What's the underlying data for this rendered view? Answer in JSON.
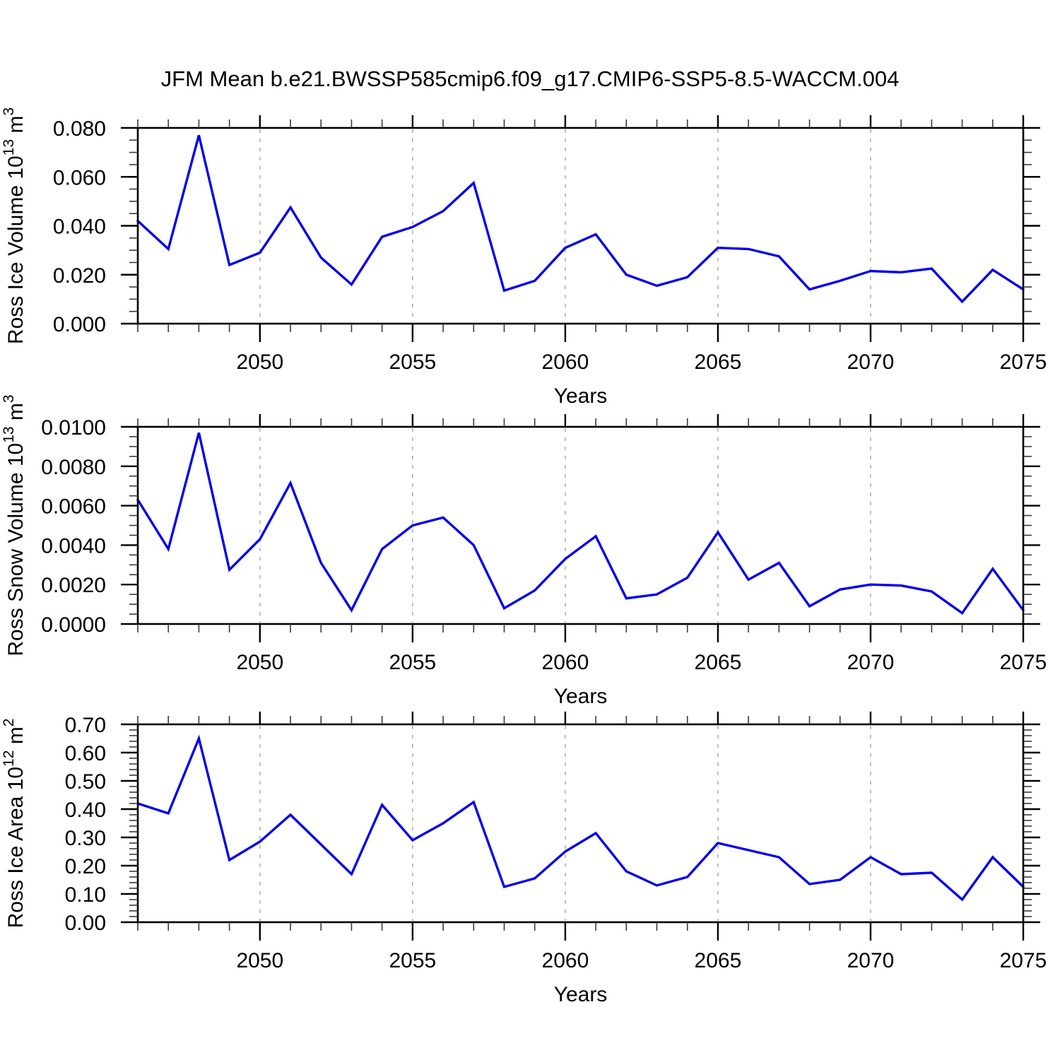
{
  "title": "JFM Mean b.e21.BWSSP585cmip6.f09_g17.CMIP6-SSP5-8.5-WACCM.004",
  "colors": {
    "line": "#0000ee",
    "grid": "#b0b0b0",
    "axis": "#000000",
    "background": "#ffffff"
  },
  "xlabel": "Years",
  "chart_data": [
    {
      "type": "line",
      "name": "ross-ice-volume",
      "title": "",
      "ylabel": "Ross Ice Volume 10^13 m^3",
      "ylabel_parts": [
        {
          "text": "Ross Ice Volume 10",
          "sup": false
        },
        {
          "text": "13",
          "sup": true
        },
        {
          "text": " m",
          "sup": false
        },
        {
          "text": "3",
          "sup": true
        }
      ],
      "xlabel": "Years",
      "xlim": [
        2046,
        2075
      ],
      "ylim": [
        0,
        0.08
      ],
      "xticks_major": [
        2050,
        2055,
        2060,
        2065,
        2070,
        2075
      ],
      "xtick_labels": [
        "2050",
        "2055",
        "2060",
        "2065",
        "2070",
        "2075"
      ],
      "x_minor_step": 1,
      "yticks_major": [
        0.0,
        0.02,
        0.04,
        0.06,
        0.08
      ],
      "ytick_labels": [
        "0.000",
        "0.020",
        "0.040",
        "0.060",
        "0.080"
      ],
      "y_minor_step": 0.005,
      "gridline_years": [
        2050,
        2055,
        2060,
        2065,
        2070
      ],
      "grid": "vertical-dashed",
      "legend": "none",
      "x": [
        2046,
        2047,
        2048,
        2049,
        2050,
        2051,
        2052,
        2053,
        2054,
        2055,
        2056,
        2057,
        2058,
        2059,
        2060,
        2061,
        2062,
        2063,
        2064,
        2065,
        2066,
        2067,
        2068,
        2069,
        2070,
        2071,
        2072,
        2073,
        2074,
        2075
      ],
      "values": [
        0.042,
        0.0305,
        0.077,
        0.024,
        0.029,
        0.0475,
        0.027,
        0.016,
        0.0355,
        0.0395,
        0.046,
        0.0575,
        0.0135,
        0.0175,
        0.031,
        0.0365,
        0.02,
        0.0155,
        0.019,
        0.031,
        0.0305,
        0.0275,
        0.014,
        0.0175,
        0.0215,
        0.021,
        0.0225,
        0.009,
        0.022,
        0.014
      ]
    },
    {
      "type": "line",
      "name": "ross-snow-volume",
      "title": "",
      "ylabel": "Ross Snow Volume 10^13 m^3",
      "ylabel_parts": [
        {
          "text": "Ross Snow Volume 10",
          "sup": false
        },
        {
          "text": "13",
          "sup": true
        },
        {
          "text": " m",
          "sup": false
        },
        {
          "text": "3",
          "sup": true
        }
      ],
      "xlabel": "Years",
      "xlim": [
        2046,
        2075
      ],
      "ylim": [
        0,
        0.01
      ],
      "xticks_major": [
        2050,
        2055,
        2060,
        2065,
        2070,
        2075
      ],
      "xtick_labels": [
        "2050",
        "2055",
        "2060",
        "2065",
        "2070",
        "2075"
      ],
      "x_minor_step": 1,
      "yticks_major": [
        0.0,
        0.002,
        0.004,
        0.006,
        0.008,
        0.01
      ],
      "ytick_labels": [
        "0.0000",
        "0.0020",
        "0.0040",
        "0.0060",
        "0.0080",
        "0.0100"
      ],
      "y_minor_step": 0.0005,
      "gridline_years": [
        2050,
        2055,
        2060,
        2065,
        2070
      ],
      "grid": "vertical-dashed",
      "legend": "none",
      "x": [
        2046,
        2047,
        2048,
        2049,
        2050,
        2051,
        2052,
        2053,
        2054,
        2055,
        2056,
        2057,
        2058,
        2059,
        2060,
        2061,
        2062,
        2063,
        2064,
        2065,
        2066,
        2067,
        2068,
        2069,
        2070,
        2071,
        2072,
        2073,
        2074,
        2075
      ],
      "values": [
        0.0063,
        0.0038,
        0.0097,
        0.00275,
        0.0043,
        0.00715,
        0.0031,
        0.0007,
        0.0038,
        0.005,
        0.0054,
        0.004,
        0.0008,
        0.0017,
        0.0033,
        0.00445,
        0.0013,
        0.0015,
        0.00235,
        0.00465,
        0.00225,
        0.0031,
        0.0009,
        0.00175,
        0.002,
        0.00195,
        0.00165,
        0.00055,
        0.0028,
        0.0007
      ]
    },
    {
      "type": "line",
      "name": "ross-ice-area",
      "title": "",
      "ylabel": "Ross Ice Area 10^12 m^2",
      "ylabel_parts": [
        {
          "text": "Ross Ice Area 10",
          "sup": false
        },
        {
          "text": "12",
          "sup": true
        },
        {
          "text": " m",
          "sup": false
        },
        {
          "text": "2",
          "sup": true
        }
      ],
      "xlabel": "Years",
      "xlim": [
        2046,
        2075
      ],
      "ylim": [
        0,
        0.7
      ],
      "xticks_major": [
        2050,
        2055,
        2060,
        2065,
        2070,
        2075
      ],
      "xtick_labels": [
        "2050",
        "2055",
        "2060",
        "2065",
        "2070",
        "2075"
      ],
      "x_minor_step": 1,
      "yticks_major": [
        0.0,
        0.1,
        0.2,
        0.3,
        0.4,
        0.5,
        0.6,
        0.7
      ],
      "ytick_labels": [
        "0.00",
        "0.10",
        "0.20",
        "0.30",
        "0.40",
        "0.50",
        "0.60",
        "0.70"
      ],
      "y_minor_step": 0.02,
      "gridline_years": [
        2050,
        2055,
        2060,
        2065,
        2070
      ],
      "grid": "vertical-dashed",
      "legend": "none",
      "x": [
        2046,
        2047,
        2048,
        2049,
        2050,
        2051,
        2052,
        2053,
        2054,
        2055,
        2056,
        2057,
        2058,
        2059,
        2060,
        2061,
        2062,
        2063,
        2064,
        2065,
        2066,
        2067,
        2068,
        2069,
        2070,
        2071,
        2072,
        2073,
        2074,
        2075
      ],
      "values": [
        0.42,
        0.385,
        0.65,
        0.22,
        0.285,
        0.38,
        0.275,
        0.17,
        0.415,
        0.29,
        0.35,
        0.425,
        0.125,
        0.155,
        0.25,
        0.315,
        0.18,
        0.13,
        0.16,
        0.28,
        0.255,
        0.23,
        0.135,
        0.15,
        0.23,
        0.17,
        0.175,
        0.08,
        0.23,
        0.125
      ]
    }
  ]
}
